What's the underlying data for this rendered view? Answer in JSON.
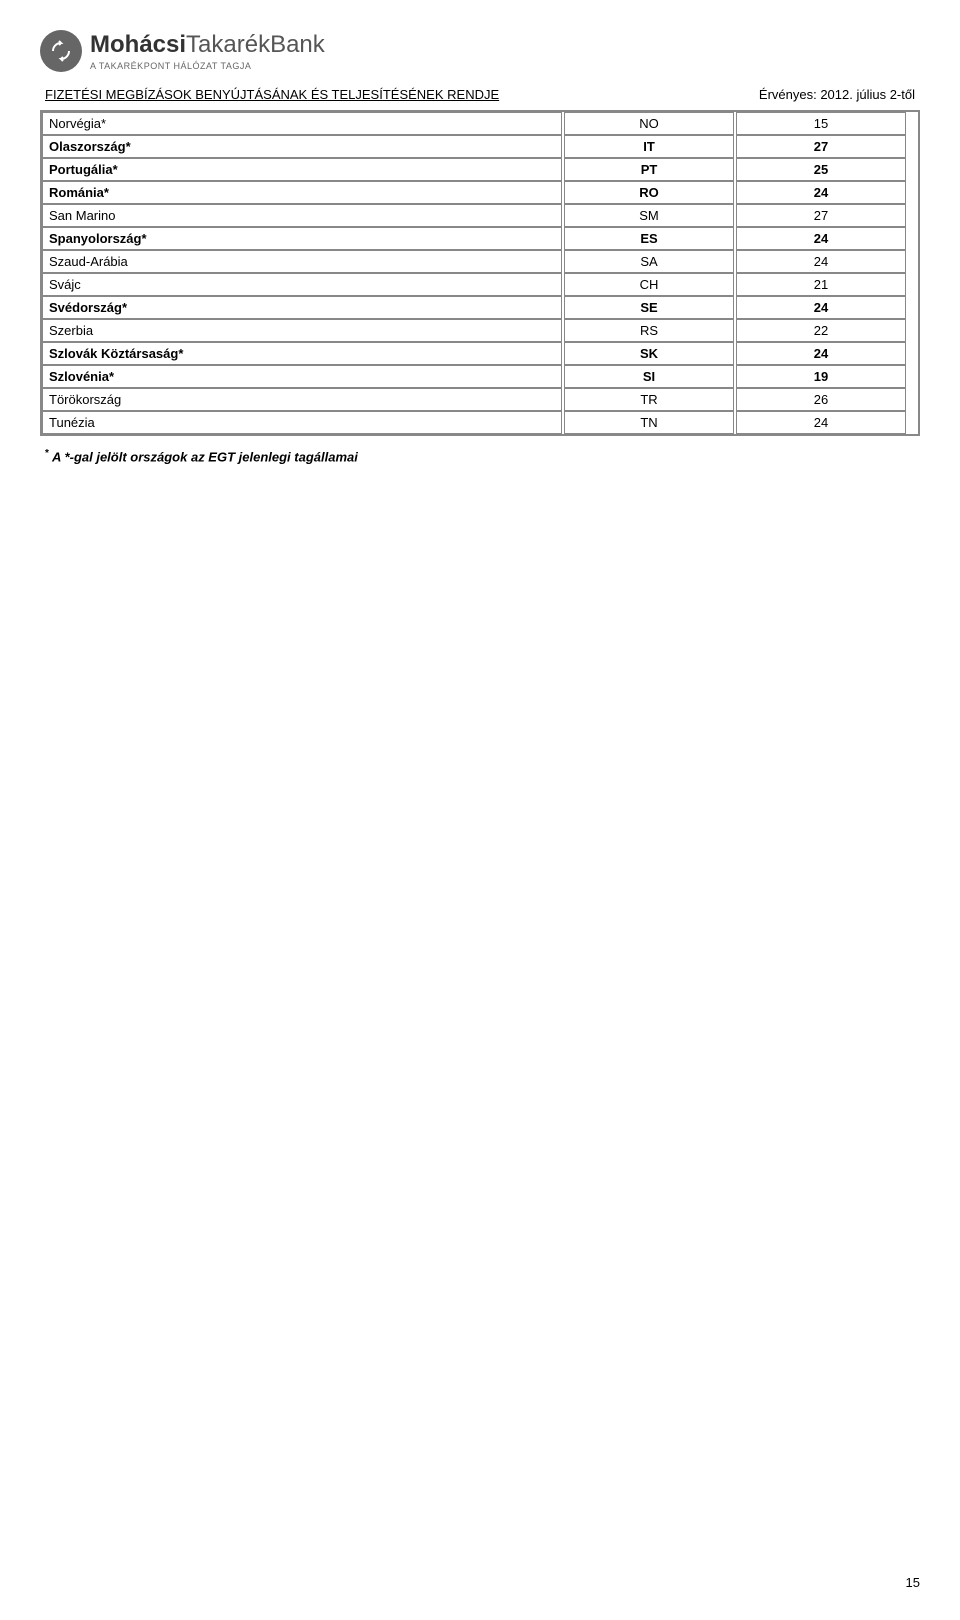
{
  "logo": {
    "bank_bold": "Mohácsi",
    "bank_mid": "Takarék",
    "bank_end": "Bank",
    "tagline": "A TAKARÉKPONT HÁLÓZAT TAGJA"
  },
  "header": {
    "left": "FIZETÉSI MEGBÍZÁSOK BENYÚJTÁSÁNAK ÉS TELJESÍTÉSÉNEK RENDJE",
    "right": "Érvényes: 2012. július 2-től"
  },
  "table": {
    "rows": [
      {
        "country": "Norvégia*",
        "code": "NO",
        "num": "15",
        "bold": false
      },
      {
        "country": "Olaszország*",
        "code": "IT",
        "num": "27",
        "bold": true
      },
      {
        "country": "Portugália*",
        "code": "PT",
        "num": "25",
        "bold": true
      },
      {
        "country": "Románia*",
        "code": "RO",
        "num": "24",
        "bold": true
      },
      {
        "country": "San Marino",
        "code": "SM",
        "num": "27",
        "bold": false
      },
      {
        "country": "Spanyolország*",
        "code": "ES",
        "num": "24",
        "bold": true
      },
      {
        "country": "Szaud-Arábia",
        "code": "SA",
        "num": "24",
        "bold": false
      },
      {
        "country": "Svájc",
        "code": "CH",
        "num": "21",
        "bold": false
      },
      {
        "country": "Svédország*",
        "code": "SE",
        "num": "24",
        "bold": true
      },
      {
        "country": "Szerbia",
        "code": "RS",
        "num": "22",
        "bold": false
      },
      {
        "country": "Szlovák Köztársaság*",
        "code": "SK",
        "num": "24",
        "bold": true
      },
      {
        "country": "Szlovénia*",
        "code": "SI",
        "num": "19",
        "bold": true
      },
      {
        "country": "Törökország",
        "code": "TR",
        "num": "26",
        "bold": false
      },
      {
        "country": "Tunézia",
        "code": "TN",
        "num": "24",
        "bold": false
      }
    ]
  },
  "footnote": {
    "star": "*",
    "text": " A *-gal jelölt országok az EGT jelenlegi tagállamai"
  },
  "page_number": "15",
  "colors": {
    "border": "#888888",
    "text": "#000000",
    "logo_gray": "#666666"
  }
}
